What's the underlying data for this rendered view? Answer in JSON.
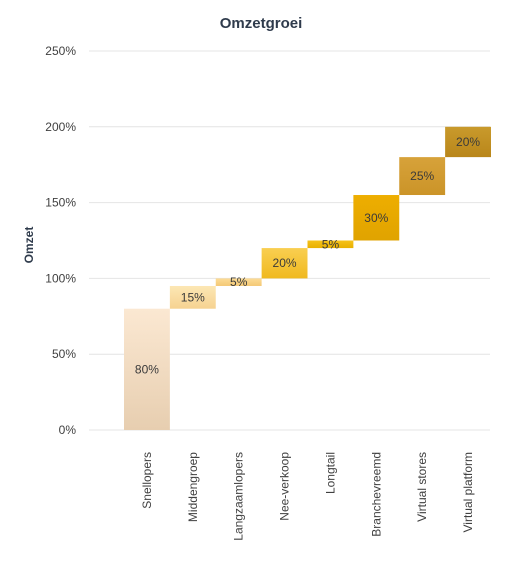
{
  "chart_data": {
    "type": "bar",
    "subtype": "waterfall",
    "title": "Omzetgroei",
    "xlabel": "",
    "ylabel": "Omzet",
    "ylim": [
      0,
      250
    ],
    "yticks": [
      "0%",
      "50%",
      "100%",
      "150%",
      "200%",
      "250%"
    ],
    "grid": true,
    "categories": [
      "Snellopers",
      "Middengroep",
      "Langzaamlopers",
      "Nee-verkoop",
      "Longtail",
      "Branchevreemd",
      "Virtual stores",
      "Virtual platform"
    ],
    "values": [
      80,
      15,
      5,
      20,
      5,
      30,
      25,
      20
    ],
    "bases": [
      0,
      80,
      95,
      100,
      120,
      125,
      155,
      180
    ],
    "labels": [
      "80%",
      "15%",
      "5%",
      "20%",
      "5%",
      "30%",
      "25%",
      "20%"
    ],
    "colors": {
      "top": [
        "#fbe8d2",
        "#fce7b4",
        "#fcdc97",
        "#f9cf51",
        "#f6c21a",
        "#eeae00",
        "#d7a23a",
        "#c99a2c"
      ],
      "bottom": [
        "#e7ceb0",
        "#f6d291",
        "#f4c875",
        "#f0b91f",
        "#e8b000",
        "#e0a300",
        "#cb9428",
        "#b9861a"
      ]
    }
  }
}
